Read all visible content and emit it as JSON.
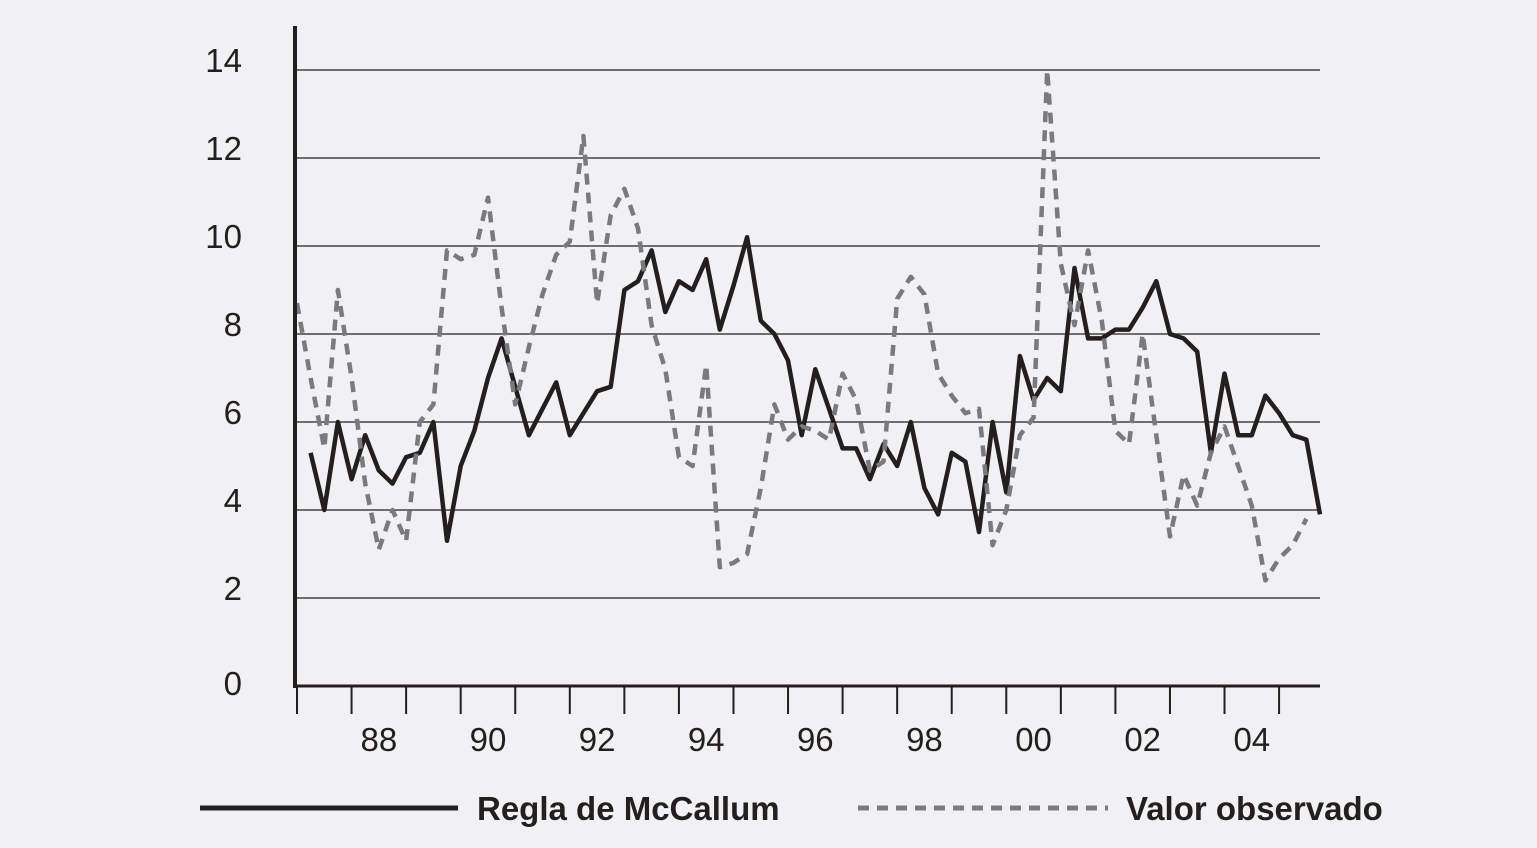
{
  "chart_data": {
    "type": "line",
    "title": "",
    "xlabel": "",
    "ylabel": "",
    "xlim": [
      1987,
      2005.75
    ],
    "ylim": [
      0,
      14
    ],
    "yticks": [
      0,
      2,
      4,
      6,
      8,
      10,
      12,
      14
    ],
    "xticks": [
      {
        "x": 1988,
        "label": "88"
      },
      {
        "x": 1990,
        "label": "90"
      },
      {
        "x": 1992,
        "label": "92"
      },
      {
        "x": 1994,
        "label": "94"
      },
      {
        "x": 1996,
        "label": "96"
      },
      {
        "x": 1998,
        "label": "98"
      },
      {
        "x": 2000,
        "label": "00"
      },
      {
        "x": 2002,
        "label": "02"
      },
      {
        "x": 2004,
        "label": "04"
      }
    ],
    "grid": "horizontal",
    "legend_position": "bottom",
    "colors": {
      "background": "#f1f1f3",
      "axis": "#231f20",
      "grid": "#231f20",
      "mccallum": "#231f20",
      "observado": "#7a7a7c"
    },
    "series": [
      {
        "name": "Regla de McCallum",
        "style": "solid",
        "points": [
          [
            1987.25,
            5.3
          ],
          [
            1987.5,
            4.0
          ],
          [
            1987.75,
            6.0
          ],
          [
            1988.0,
            4.7
          ],
          [
            1988.25,
            5.7
          ],
          [
            1988.5,
            4.9
          ],
          [
            1988.75,
            4.6
          ],
          [
            1989.0,
            5.2
          ],
          [
            1989.25,
            5.3
          ],
          [
            1989.5,
            6.0
          ],
          [
            1989.75,
            3.3
          ],
          [
            1990.0,
            5.0
          ],
          [
            1990.25,
            5.8
          ],
          [
            1990.5,
            7.0
          ],
          [
            1990.75,
            7.9
          ],
          [
            1991.0,
            6.8
          ],
          [
            1991.25,
            5.7
          ],
          [
            1991.5,
            6.3
          ],
          [
            1991.75,
            6.9
          ],
          [
            1992.0,
            5.7
          ],
          [
            1992.25,
            6.2
          ],
          [
            1992.5,
            6.7
          ],
          [
            1992.75,
            6.8
          ],
          [
            1993.0,
            9.0
          ],
          [
            1993.25,
            9.2
          ],
          [
            1993.5,
            9.9
          ],
          [
            1993.75,
            8.5
          ],
          [
            1994.0,
            9.2
          ],
          [
            1994.25,
            9.0
          ],
          [
            1994.5,
            9.7
          ],
          [
            1994.75,
            8.1
          ],
          [
            1995.0,
            9.1
          ],
          [
            1995.25,
            10.2
          ],
          [
            1995.5,
            8.3
          ],
          [
            1995.75,
            8.0
          ],
          [
            1996.0,
            7.4
          ],
          [
            1996.25,
            5.7
          ],
          [
            1996.5,
            7.2
          ],
          [
            1996.75,
            6.3
          ],
          [
            1997.0,
            5.4
          ],
          [
            1997.25,
            5.4
          ],
          [
            1997.5,
            4.7
          ],
          [
            1997.75,
            5.5
          ],
          [
            1998.0,
            5.0
          ],
          [
            1998.25,
            6.0
          ],
          [
            1998.5,
            4.5
          ],
          [
            1998.75,
            3.9
          ],
          [
            1999.0,
            5.3
          ],
          [
            1999.25,
            5.1
          ],
          [
            1999.5,
            3.5
          ],
          [
            1999.75,
            6.0
          ],
          [
            2000.0,
            4.4
          ],
          [
            2000.25,
            7.5
          ],
          [
            2000.5,
            6.5
          ],
          [
            2000.75,
            7.0
          ],
          [
            2001.0,
            6.7
          ],
          [
            2001.25,
            9.5
          ],
          [
            2001.5,
            7.9
          ],
          [
            2001.75,
            7.9
          ],
          [
            2002.0,
            8.1
          ],
          [
            2002.25,
            8.1
          ],
          [
            2002.5,
            8.6
          ],
          [
            2002.75,
            9.2
          ],
          [
            2003.0,
            8.0
          ],
          [
            2003.25,
            7.9
          ],
          [
            2003.5,
            7.6
          ],
          [
            2003.75,
            5.3
          ],
          [
            2004.0,
            7.1
          ],
          [
            2004.25,
            5.7
          ],
          [
            2004.5,
            5.7
          ],
          [
            2004.75,
            6.6
          ],
          [
            2005.0,
            6.2
          ],
          [
            2005.25,
            5.7
          ],
          [
            2005.5,
            5.6
          ],
          [
            2005.75,
            3.9
          ]
        ]
      },
      {
        "name": "Valor observado",
        "style": "dashed",
        "points": [
          [
            1987.0,
            8.7
          ],
          [
            1987.25,
            7.0
          ],
          [
            1987.5,
            5.4
          ],
          [
            1987.75,
            9.0
          ],
          [
            1988.0,
            7.0
          ],
          [
            1988.25,
            4.6
          ],
          [
            1988.5,
            3.1
          ],
          [
            1988.75,
            4.0
          ],
          [
            1989.0,
            3.3
          ],
          [
            1989.25,
            6.0
          ],
          [
            1989.5,
            6.4
          ],
          [
            1989.75,
            9.9
          ],
          [
            1990.0,
            9.7
          ],
          [
            1990.25,
            9.8
          ],
          [
            1990.5,
            11.1
          ],
          [
            1990.75,
            8.6
          ],
          [
            1991.0,
            6.4
          ],
          [
            1991.25,
            7.7
          ],
          [
            1991.5,
            8.9
          ],
          [
            1991.75,
            9.8
          ],
          [
            1992.0,
            10.1
          ],
          [
            1992.25,
            12.5
          ],
          [
            1992.5,
            8.7
          ],
          [
            1992.75,
            10.7
          ],
          [
            1993.0,
            11.3
          ],
          [
            1993.25,
            10.4
          ],
          [
            1993.5,
            8.2
          ],
          [
            1993.75,
            7.2
          ],
          [
            1994.0,
            5.2
          ],
          [
            1994.25,
            5.0
          ],
          [
            1994.5,
            7.3
          ],
          [
            1994.75,
            2.7
          ],
          [
            1995.0,
            2.8
          ],
          [
            1995.25,
            3.0
          ],
          [
            1995.5,
            4.5
          ],
          [
            1995.75,
            6.4
          ],
          [
            1996.0,
            5.6
          ],
          [
            1996.25,
            5.9
          ],
          [
            1996.5,
            5.8
          ],
          [
            1996.75,
            5.6
          ],
          [
            1997.0,
            7.1
          ],
          [
            1997.25,
            6.5
          ],
          [
            1997.5,
            4.9
          ],
          [
            1997.75,
            5.1
          ],
          [
            1998.0,
            8.8
          ],
          [
            1998.25,
            9.3
          ],
          [
            1998.5,
            8.9
          ],
          [
            1998.75,
            7.1
          ],
          [
            1999.0,
            6.6
          ],
          [
            1999.25,
            6.2
          ],
          [
            1999.5,
            6.3
          ],
          [
            1999.75,
            3.2
          ],
          [
            2000.0,
            4.0
          ],
          [
            2000.25,
            5.7
          ],
          [
            2000.5,
            6.1
          ],
          [
            2000.75,
            14.0
          ],
          [
            2001.0,
            9.6
          ],
          [
            2001.25,
            8.2
          ],
          [
            2001.5,
            9.9
          ],
          [
            2001.75,
            8.3
          ],
          [
            2002.0,
            5.8
          ],
          [
            2002.25,
            5.5
          ],
          [
            2002.5,
            8.0
          ],
          [
            2002.75,
            5.7
          ],
          [
            2003.0,
            3.4
          ],
          [
            2003.25,
            4.8
          ],
          [
            2003.5,
            4.1
          ],
          [
            2003.75,
            5.3
          ],
          [
            2004.0,
            5.9
          ],
          [
            2004.25,
            5.0
          ],
          [
            2004.5,
            4.1
          ],
          [
            2004.75,
            2.4
          ],
          [
            2005.0,
            2.9
          ],
          [
            2005.25,
            3.2
          ],
          [
            2005.5,
            3.8
          ]
        ]
      }
    ]
  }
}
